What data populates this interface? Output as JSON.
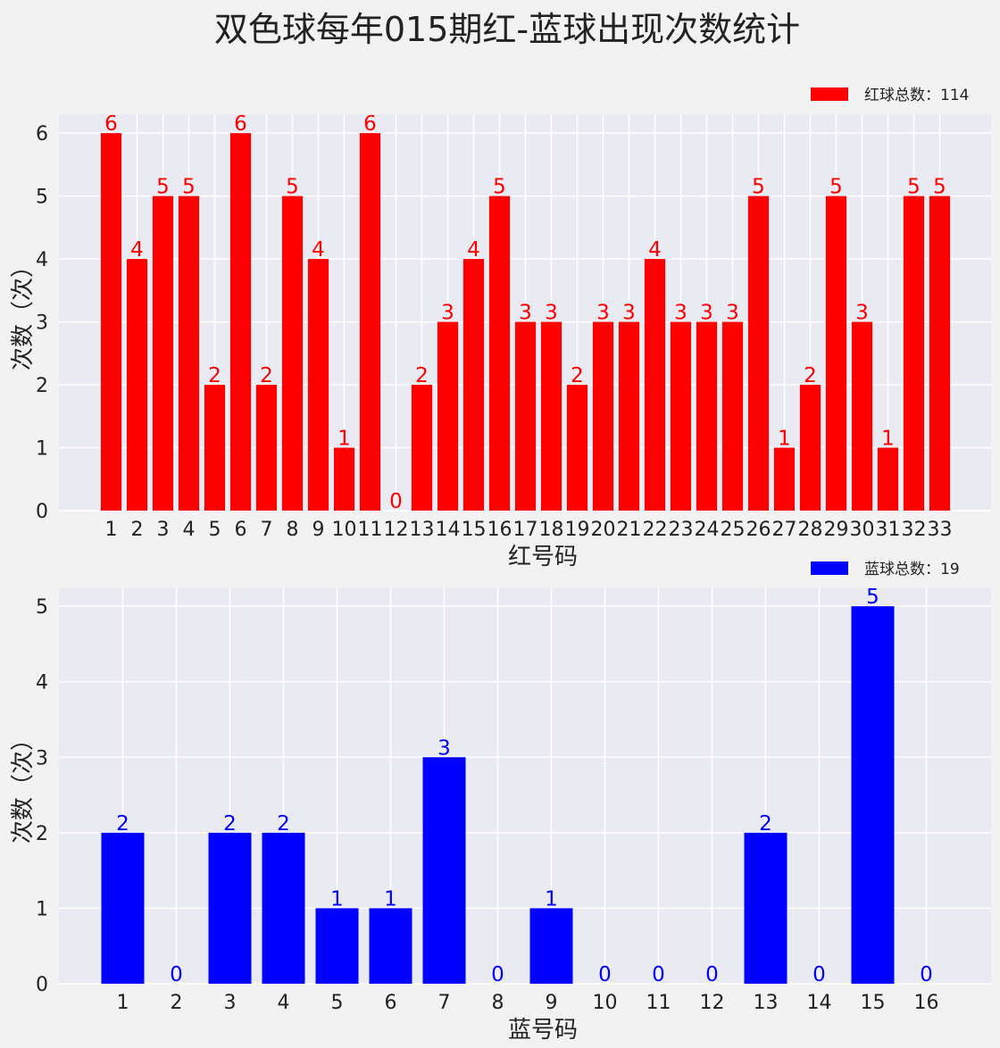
{
  "title": "双色球每年015期红-蓝球出现次数统计",
  "chart_data": [
    {
      "type": "bar",
      "categories": [
        "1",
        "2",
        "3",
        "4",
        "5",
        "6",
        "7",
        "8",
        "9",
        "10",
        "11",
        "12",
        "13",
        "14",
        "15",
        "16",
        "17",
        "18",
        "19",
        "20",
        "21",
        "22",
        "23",
        "24",
        "25",
        "26",
        "27",
        "28",
        "29",
        "30",
        "31",
        "32",
        "33"
      ],
      "values": [
        6,
        4,
        5,
        5,
        2,
        6,
        2,
        5,
        4,
        1,
        6,
        0,
        2,
        3,
        4,
        5,
        3,
        3,
        2,
        3,
        3,
        4,
        3,
        3,
        3,
        5,
        1,
        2,
        5,
        3,
        1,
        5,
        5
      ],
      "xlabel": "红号码",
      "ylabel": "次数（次）",
      "ylim": [
        0,
        6.3
      ],
      "yticks": [
        0,
        1,
        2,
        3,
        4,
        5,
        6
      ],
      "color": "#ff0000",
      "legend": "红球总数：114",
      "legend_position": "top-right",
      "grid": true
    },
    {
      "type": "bar",
      "categories": [
        "1",
        "2",
        "3",
        "4",
        "5",
        "6",
        "7",
        "8",
        "9",
        "10",
        "11",
        "12",
        "13",
        "14",
        "15",
        "16"
      ],
      "values": [
        2,
        0,
        2,
        2,
        1,
        1,
        3,
        0,
        1,
        0,
        0,
        0,
        2,
        0,
        5,
        0
      ],
      "xlabel": "蓝号码",
      "ylabel": "次数（次）",
      "ylim": [
        0,
        5.25
      ],
      "yticks": [
        0,
        1,
        2,
        3,
        4,
        5
      ],
      "color": "#0000ff",
      "legend": "蓝球总数：19",
      "legend_position": "top-right",
      "grid": true
    }
  ]
}
